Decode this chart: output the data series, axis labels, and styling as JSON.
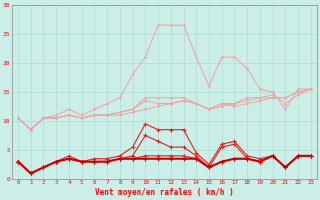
{
  "x": [
    0,
    1,
    2,
    3,
    4,
    5,
    6,
    7,
    8,
    9,
    10,
    11,
    12,
    13,
    14,
    15,
    16,
    17,
    18,
    19,
    20,
    21,
    22,
    23
  ],
  "line_rafale1": [
    10.5,
    8.5,
    10.5,
    10.5,
    11,
    10.5,
    11,
    11,
    11,
    11.5,
    12,
    12.5,
    13,
    13.5,
    13,
    12,
    13,
    12.5,
    13,
    13.5,
    14,
    14,
    15,
    15.5
  ],
  "line_rafale2": [
    10.5,
    8.5,
    10.5,
    10.5,
    11,
    10.5,
    11,
    11,
    11.5,
    12,
    13.5,
    13,
    13,
    13.5,
    13,
    12,
    12.5,
    13,
    13.5,
    14,
    14,
    14,
    15,
    15.5
  ],
  "line_rafale3": [
    10.5,
    8.5,
    10.5,
    10.5,
    11,
    10.5,
    11,
    11,
    11.5,
    12,
    14,
    14,
    14,
    14,
    13,
    12,
    13,
    13,
    14,
    14,
    14.5,
    13,
    14.5,
    15.5
  ],
  "line_rafale4": [
    10.5,
    8.5,
    10.5,
    11,
    12,
    11,
    12,
    13,
    14,
    18,
    21,
    26.5,
    26.5,
    26.5,
    21,
    16,
    21,
    21,
    19,
    15.5,
    15,
    12,
    15.5,
    15.5
  ],
  "line_vent1": [
    3.0,
    1.0,
    2.0,
    3.0,
    3.5,
    3.0,
    3.0,
    3.0,
    3.5,
    3.5,
    3.5,
    3.5,
    3.5,
    3.5,
    3.5,
    2.0,
    3.0,
    3.5,
    3.5,
    3.0,
    4.0,
    2.0,
    4.0,
    4.0
  ],
  "line_vent2": [
    3.0,
    1.0,
    2.0,
    3.0,
    3.5,
    3.0,
    3.0,
    3.0,
    3.5,
    3.5,
    4.0,
    4.0,
    4.0,
    4.0,
    3.5,
    2.0,
    3.0,
    3.5,
    3.5,
    3.0,
    4.0,
    2.0,
    4.0,
    4.0
  ],
  "line_vent3": [
    3.0,
    1.0,
    2.0,
    3.0,
    3.5,
    3.0,
    3.0,
    3.0,
    3.5,
    4.0,
    7.5,
    6.5,
    5.5,
    5.5,
    4.0,
    2.0,
    5.5,
    6.0,
    3.5,
    3.0,
    4.0,
    2.0,
    4.0,
    4.0
  ],
  "line_vent4": [
    3.0,
    1.0,
    2.0,
    3.0,
    4.0,
    3.0,
    3.5,
    3.5,
    4.0,
    5.5,
    9.5,
    8.5,
    8.5,
    8.5,
    4.5,
    2.5,
    6.0,
    6.5,
    4.0,
    3.5,
    4.0,
    2.0,
    4.0,
    4.0
  ],
  "xlabel": "Vent moyen/en rafales ( km/h )",
  "ylim": [
    0,
    30
  ],
  "xlim": [
    -0.5,
    23.5
  ],
  "yticks": [
    0,
    5,
    10,
    15,
    20,
    25,
    30
  ],
  "xticks": [
    0,
    1,
    2,
    3,
    4,
    5,
    6,
    7,
    8,
    9,
    10,
    11,
    12,
    13,
    14,
    15,
    16,
    17,
    18,
    19,
    20,
    21,
    22,
    23
  ],
  "bg_color": "#cceee8",
  "grid_color": "#aaddcc",
  "color_light": "#f0a0a0",
  "color_dark": "#dd2222",
  "color_thick": "#cc0000"
}
